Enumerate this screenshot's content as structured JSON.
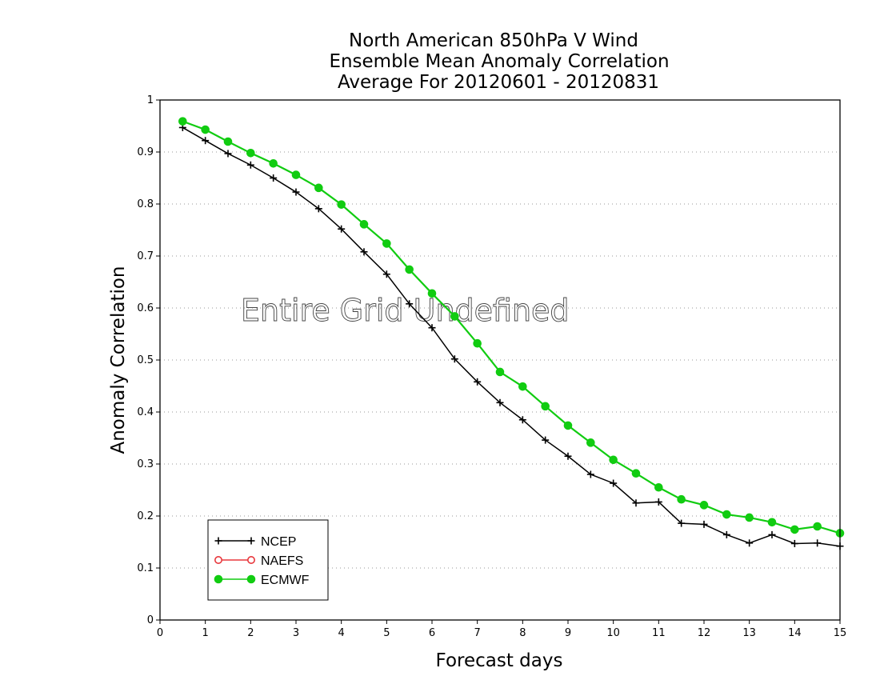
{
  "chart_data": {
    "type": "line",
    "title_lines": [
      "North American 850hPa V Wind",
      "Ensemble Mean Anomaly Correlation",
      "Average For 20120601 - 20120831"
    ],
    "xlabel": "Forecast days",
    "ylabel": "Anomaly Correlation",
    "annotation": "Entire Grid Undefined",
    "xlim": [
      0,
      15
    ],
    "ylim": [
      0,
      1
    ],
    "x_ticks": [
      "0",
      "1",
      "2",
      "3",
      "4",
      "5",
      "6",
      "7",
      "8",
      "9",
      "10",
      "11",
      "12",
      "13",
      "14",
      "15"
    ],
    "y_ticks": [
      "0",
      "0.1",
      "0.2",
      "0.3",
      "0.4",
      "0.5",
      "0.6",
      "0.7",
      "0.8",
      "0.9",
      "1"
    ],
    "grid": "horizontal dotted",
    "legend_position": "bottom-left",
    "series": [
      {
        "name": "NCEP",
        "color": "#000000",
        "marker": "plus",
        "x": [
          0.5,
          1,
          1.5,
          2,
          2.5,
          3,
          3.5,
          4,
          4.5,
          5,
          5.5,
          6,
          6.5,
          7,
          7.5,
          8,
          8.5,
          9,
          9.5,
          10,
          10.5,
          11,
          11.5,
          12,
          12.5,
          13,
          13.5,
          14,
          14.5,
          15
        ],
        "values": [
          0.947,
          0.922,
          0.897,
          0.875,
          0.85,
          0.823,
          0.791,
          0.752,
          0.708,
          0.665,
          0.608,
          0.562,
          0.502,
          0.458,
          0.418,
          0.385,
          0.346,
          0.315,
          0.28,
          0.263,
          0.225,
          0.227,
          0.186,
          0.184,
          0.164,
          0.148,
          0.164,
          0.147,
          0.148,
          0.142
        ]
      },
      {
        "name": "NAEFS",
        "color": "#e8383d",
        "marker": "open-circle",
        "x": [],
        "values": []
      },
      {
        "name": "ECMWF",
        "color": "#11cc11",
        "marker": "filled-circle",
        "x": [
          0.5,
          1,
          1.5,
          2,
          2.5,
          3,
          3.5,
          4,
          4.5,
          5,
          5.5,
          6,
          6.5,
          7,
          7.5,
          8,
          8.5,
          9,
          9.5,
          10,
          10.5,
          11,
          11.5,
          12,
          12.5,
          13,
          13.5,
          14,
          14.5,
          15
        ],
        "values": [
          0.959,
          0.943,
          0.92,
          0.898,
          0.878,
          0.856,
          0.831,
          0.799,
          0.761,
          0.724,
          0.674,
          0.628,
          0.584,
          0.532,
          0.477,
          0.449,
          0.411,
          0.374,
          0.341,
          0.308,
          0.282,
          0.255,
          0.232,
          0.221,
          0.203,
          0.197,
          0.188,
          0.174,
          0.18,
          0.167
        ]
      }
    ]
  }
}
